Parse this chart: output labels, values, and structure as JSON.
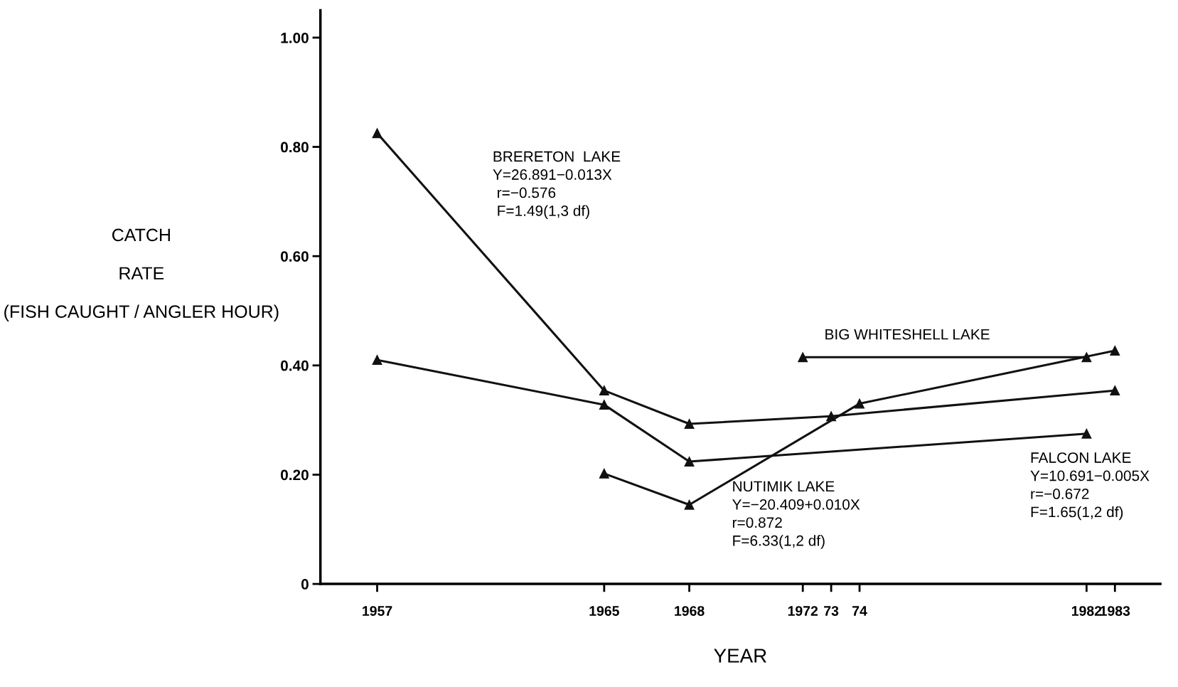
{
  "chart_data": {
    "type": "line",
    "xlabel": "YEAR",
    "ylabel": "CATCH\n\nRATE\n\n(FISH CAUGHT / ANGLER HOUR)",
    "marker": "triangle",
    "line_style": "solid",
    "grid": false,
    "xlim": [
      1955,
      1984.6
    ],
    "ylim": [
      0,
      1.05
    ],
    "xticks": [
      1957,
      1965,
      1968,
      1972,
      {
        "value": 1973,
        "label": "73"
      },
      {
        "value": 1974,
        "label": "74"
      },
      1982,
      1983
    ],
    "yticks": [
      0,
      {
        "value": 0.2,
        "label": "0.20"
      },
      {
        "value": 0.4,
        "label": "0.40"
      },
      {
        "value": 0.6,
        "label": "0.60"
      },
      {
        "value": 0.8,
        "label": "0.80"
      },
      {
        "value": 1.0,
        "label": "1.00"
      }
    ],
    "series": [
      {
        "color": "#111111",
        "x": [
          1957,
          1965,
          1968,
          1973,
          1983
        ],
        "values": [
          0.825,
          0.354,
          0.293,
          0.307,
          0.354
        ]
      },
      {
        "color": "#111111",
        "x": [
          1957,
          1965,
          1968,
          1982
        ],
        "values": [
          0.41,
          0.328,
          0.224,
          0.275
        ]
      },
      {
        "color": "#111111",
        "x": [
          1965,
          1968,
          1974,
          1983
        ],
        "values": [
          0.202,
          0.145,
          0.33,
          0.427
        ]
      },
      {
        "color": "#111111",
        "x": [
          1972,
          1982
        ],
        "values": [
          0.415,
          0.415
        ]
      }
    ],
    "annotations": [
      "BRERETON  LAKE\nY=26.891−0.013X\n r=−0.576\n F=1.49(1,3 df)",
      "BIG WHITESHELL LAKE",
      "NUTIMIK LAKE\nY=−20.409+0.010X\nr=0.872\nF=6.33(1,2 df)",
      "FALCON LAKE\nY=10.691−0.005X\nr=−0.672\nF=1.65(1,2 df)"
    ]
  }
}
